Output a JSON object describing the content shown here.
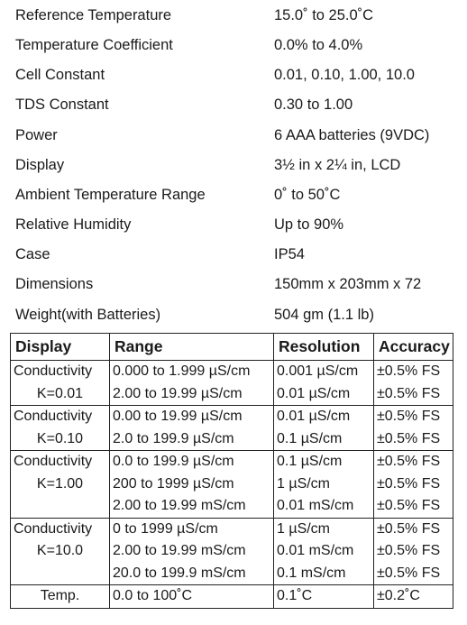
{
  "specs": [
    {
      "label": "Reference Temperature",
      "value": "15.0˚ to 25.0˚C"
    },
    {
      "label": "Temperature Coefficient",
      "value": "0.0% to 4.0%"
    },
    {
      "label": "Cell Constant",
      "value": "0.01, 0.10, 1.00, 10.0"
    },
    {
      "label": "TDS Constant",
      "value": "0.30 to 1.00"
    },
    {
      "label": "Power",
      "value": "6 AAA batteries (9VDC)"
    },
    {
      "label": "Display",
      "value": "3½ in x 2¼ in, LCD"
    },
    {
      "label": "Ambient Temperature Range",
      "value": "0˚ to 50˚C"
    },
    {
      "label": "Relative Humidity",
      "value": "Up to 90%"
    },
    {
      "label": "Case",
      "value": "IP54"
    },
    {
      "label": "Dimensions",
      "value": "150mm x 203mm  x 72"
    },
    {
      "label": "Weight(with Batteries)",
      "value": "504 gm (1.1 lb)"
    }
  ],
  "table": {
    "headers": [
      "Display",
      "Range",
      "Resolution",
      "Accuracy"
    ],
    "groups": [
      {
        "display": [
          "Conductivity",
          "K=0.01"
        ],
        "rows": [
          {
            "range": "0.000 to 1.999 µS/cm",
            "resolution": "0.001 µS/cm",
            "accuracy": "±0.5% FS"
          },
          {
            "range": "2.00 to 19.99 µS/cm",
            "resolution": "0.01 µS/cm",
            "accuracy": "±0.5% FS"
          }
        ]
      },
      {
        "display": [
          "Conductivity",
          "K=0.10"
        ],
        "rows": [
          {
            "range": "0.00 to 19.99 µS/cm",
            "resolution": "0.01 µS/cm",
            "accuracy": "±0.5% FS"
          },
          {
            "range": "2.0 to 199.9 µS/cm",
            "resolution": "0.1 µS/cm",
            "accuracy": "±0.5% FS"
          }
        ]
      },
      {
        "display": [
          "Conductivity",
          "K=1.00"
        ],
        "rows": [
          {
            "range": "0.0 to 199.9 µS/cm",
            "resolution": "0.1 µS/cm",
            "accuracy": "±0.5% FS"
          },
          {
            "range": "200 to 1999 µS/cm",
            "resolution": "1 µS/cm",
            "accuracy": "±0.5% FS"
          },
          {
            "range": "2.00 to 19.99 mS/cm",
            "resolution": "0.01 mS/cm",
            "accuracy": "±0.5% FS"
          }
        ]
      },
      {
        "display": [
          "Conductivity",
          "K=10.0"
        ],
        "rows": [
          {
            "range": "0 to 1999 µS/cm",
            "resolution": "1 µS/cm",
            "accuracy": "±0.5% FS"
          },
          {
            "range": "2.00 to 19.99 mS/cm",
            "resolution": "0.01 mS/cm",
            "accuracy": "±0.5% FS"
          },
          {
            "range": "20.0 to 199.9 mS/cm",
            "resolution": "0.1 mS/cm",
            "accuracy": "±0.5% FS"
          }
        ]
      },
      {
        "display": [
          "Temp."
        ],
        "rows": [
          {
            "range": "0.0 to 100˚C",
            "resolution": "0.1˚C",
            "accuracy": "±0.2˚C"
          }
        ]
      }
    ]
  }
}
